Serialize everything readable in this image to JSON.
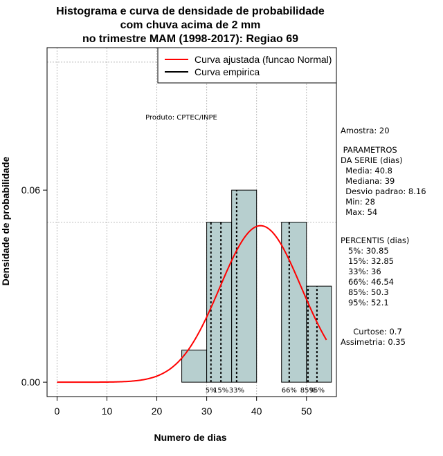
{
  "chart_data": {
    "type": "histogram",
    "title_lines": [
      "Histograma e curva de densidade de probabilidade",
      "com chuva acima de 2 mm",
      "no trimestre MAM (1998-2017): Regiao 69"
    ],
    "xlabel": "Numero de dias",
    "ylabel": "Densidade de probabilidade",
    "xlim": [
      -2,
      56
    ],
    "ylim": [
      -0.0045,
      0.1045
    ],
    "x_ticks": [
      0,
      10,
      20,
      30,
      40,
      50
    ],
    "x_tick_labels": [
      "0",
      "10",
      "20",
      "30",
      "40",
      "50"
    ],
    "y_ticks": [
      0,
      0.06
    ],
    "y_tick_labels": [
      "0.00",
      "0.06"
    ],
    "x_grid": [
      0,
      10,
      20,
      30,
      40,
      50
    ],
    "y_grid": [
      0.05,
      0.1
    ],
    "bins": [
      {
        "start": 25,
        "end": 30,
        "density": 0.01
      },
      {
        "start": 30,
        "end": 35,
        "density": 0.05
      },
      {
        "start": 35,
        "end": 40,
        "density": 0.06
      },
      {
        "start": 40,
        "end": 45,
        "density": 0.0
      },
      {
        "start": 45,
        "end": 50,
        "density": 0.05
      },
      {
        "start": 50,
        "end": 55,
        "density": 0.03
      }
    ],
    "normal_fit": {
      "mean": 40.8,
      "sd": 8.16,
      "x_from": 0,
      "x_to": 54
    },
    "percentile_lines": [
      {
        "label": "5%",
        "value": 30.85
      },
      {
        "label": "15%",
        "value": 32.85
      },
      {
        "label": "33%",
        "value": 36
      },
      {
        "label": "66%",
        "value": 46.54
      },
      {
        "label": "85%",
        "value": 50.3
      },
      {
        "label": "95%",
        "value": 52.1
      }
    ],
    "legend": [
      {
        "label": "Curva ajustada (funcao Normal)",
        "color": "#ff0000"
      },
      {
        "label": "Curva empirica",
        "color": "#000000"
      }
    ],
    "annotation": "Produto: CPTEC/INPE",
    "colors": {
      "bar_fill": "#b7cfcf",
      "normal_curve": "#ff0000",
      "grid": "#bbbbbb"
    }
  },
  "side_panel": {
    "amostra": "Amostra: 20",
    "param_header": " PARAMETROS\nDA SERIE (dias)",
    "param_values": "  Media: 40.8\n  Mediana: 39\n  Desvio padrao: 8.16\n  Min: 28\n  Max: 54",
    "percentis_header": "PERCENTIS (dias)",
    "percentis_values": "   5%: 30.85\n   15%: 32.85\n   33%: 36\n   66%: 46.54\n   85%: 50.3\n   95%: 52.1",
    "curtose": "     Curtose: 0.7",
    "assimetria": "Assimetria: 0.35"
  }
}
